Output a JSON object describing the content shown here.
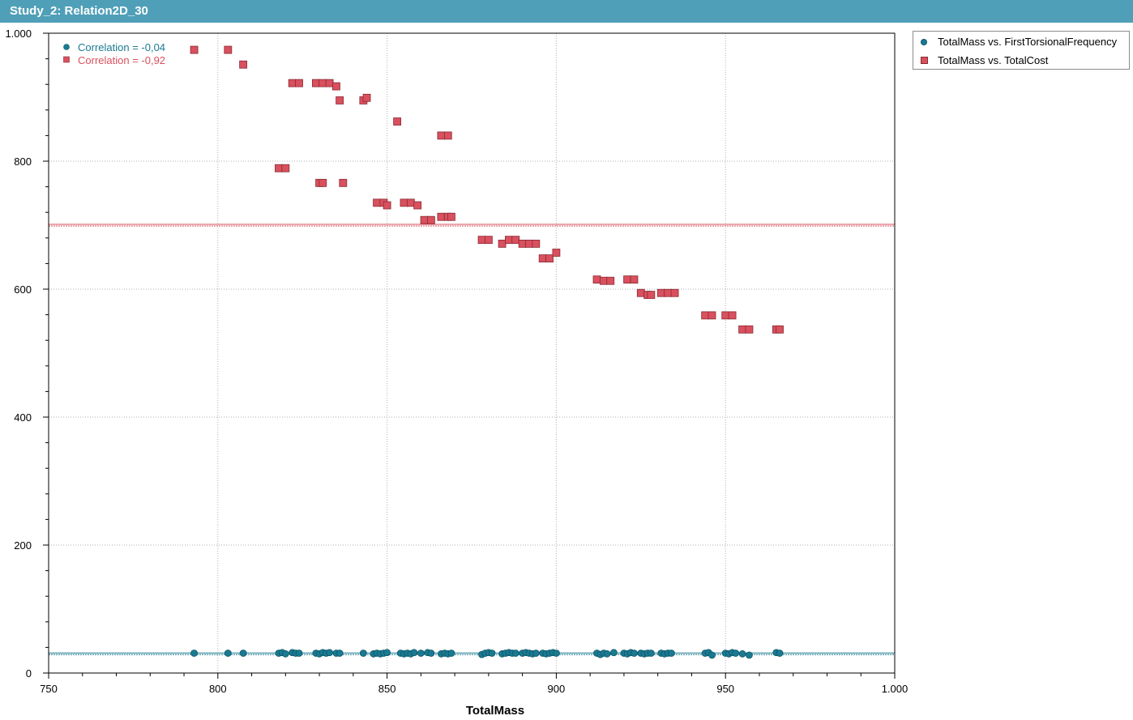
{
  "window": {
    "title": "Study_2: Relation2D_30"
  },
  "chart_data": {
    "type": "scatter",
    "xlabel": "TotalMass",
    "ylabel": "",
    "xlim": [
      750,
      1000
    ],
    "ylim": [
      0,
      1000
    ],
    "x_ticks": [
      750,
      800,
      850,
      900,
      950,
      1000
    ],
    "x_tick_labels": [
      "750",
      "800",
      "850",
      "900",
      "950",
      "1.000"
    ],
    "y_ticks": [
      0,
      200,
      400,
      600,
      800,
      1000
    ],
    "y_tick_labels": [
      "0",
      "200",
      "400",
      "600",
      "800",
      "1.000"
    ],
    "grid": true,
    "legend_position": "right-outside-top",
    "annotations": [
      {
        "text": "Correlation = -0,04",
        "color": "#1a7a92",
        "marker": "circle"
      },
      {
        "text": "Correlation = -0,92",
        "color": "#d9505e",
        "marker": "square"
      }
    ],
    "series": [
      {
        "name": "TotalMass vs. FirstTorsionalFrequency",
        "marker": "circle",
        "color": "#1a7a92",
        "trend_y": 30,
        "x": [
          793,
          803,
          807.5,
          818,
          819,
          820,
          822,
          823,
          824,
          829,
          830,
          831,
          832,
          833,
          835,
          836,
          843,
          846,
          847,
          848,
          849,
          850,
          854,
          855,
          856,
          857,
          858,
          860,
          862,
          863,
          866,
          867,
          868,
          869,
          878,
          879,
          880,
          881,
          884,
          885,
          886,
          887,
          888,
          890,
          891,
          892,
          893,
          894,
          896,
          897,
          898,
          899,
          900,
          912,
          913,
          914,
          915,
          917,
          920,
          921,
          922,
          923,
          925,
          926,
          927,
          928,
          931,
          932,
          933,
          934,
          944,
          945,
          946,
          950,
          951,
          952,
          953,
          955,
          957,
          965,
          966
        ],
        "y": [
          31,
          31,
          31,
          31,
          32,
          30,
          32,
          31,
          31,
          31,
          30,
          32,
          31,
          32,
          31,
          31,
          31,
          30,
          31,
          30,
          31,
          32,
          31,
          30,
          31,
          30,
          32,
          31,
          32,
          31,
          30,
          31,
          30,
          31,
          29,
          31,
          32,
          31,
          30,
          31,
          32,
          31,
          31,
          31,
          32,
          31,
          30,
          31,
          31,
          30,
          31,
          32,
          31,
          31,
          29,
          31,
          30,
          32,
          31,
          30,
          32,
          31,
          31,
          30,
          31,
          31,
          31,
          30,
          31,
          31,
          31,
          32,
          28,
          31,
          30,
          32,
          31,
          30,
          28,
          32,
          31
        ]
      },
      {
        "name": "TotalMass vs. TotalCost",
        "marker": "square",
        "color": "#d9505e",
        "trend_y": 700,
        "x": [
          793,
          803,
          807.5,
          822,
          824,
          829,
          831,
          833,
          835,
          836,
          843,
          844,
          818,
          820,
          830,
          831,
          837,
          853,
          866,
          868,
          847,
          849,
          850,
          855,
          857,
          859,
          861,
          863,
          866,
          868,
          869,
          878,
          880,
          884,
          886,
          888,
          890,
          892,
          894,
          896,
          898,
          900,
          912,
          914,
          916,
          921,
          923,
          925,
          927,
          928,
          931,
          933,
          935,
          944,
          946,
          950,
          952,
          955,
          957,
          965,
          966
        ],
        "y": [
          974,
          974,
          951,
          922,
          922,
          922,
          922,
          922,
          917,
          895,
          895,
          899,
          789,
          789,
          766,
          766,
          766,
          862,
          840,
          840,
          735,
          735,
          731,
          735,
          735,
          731,
          708,
          708,
          713,
          713,
          713,
          677,
          677,
          671,
          677,
          677,
          671,
          671,
          671,
          648,
          648,
          657,
          615,
          613,
          613,
          615,
          615,
          594,
          591,
          591,
          594,
          594,
          594,
          559,
          559,
          559,
          559,
          537,
          537,
          537,
          537
        ]
      }
    ]
  }
}
